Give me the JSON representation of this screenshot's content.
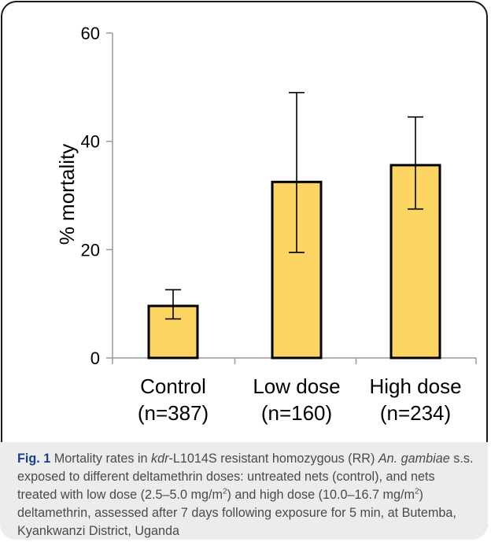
{
  "chart_data": {
    "type": "bar",
    "categories": [
      "Control",
      "Low dose",
      "High dose"
    ],
    "category_counts": [
      "(n=387)",
      "(n=160)",
      "(n=234)"
    ],
    "values": [
      9.6,
      32.5,
      35.6
    ],
    "error_low": [
      7.2,
      19.5,
      27.5
    ],
    "error_high": [
      12.6,
      49.0,
      44.5
    ],
    "ylabel": "% mortality",
    "ylim": [
      0,
      60
    ],
    "yticks": [
      0,
      20,
      40,
      60
    ],
    "bar_color": "#fcd562",
    "grid": false
  },
  "caption": {
    "lead": "Fig. 1",
    "p1": " Mortality rates in ",
    "kdr": "kdr",
    "p2": "-L1014S resistant homozygous (RR) ",
    "an": "An.",
    "gambiae": "gambiae",
    "p3": " s.s. exposed to different deltamethrin doses: untreated nets (control), and nets treated with low dose (2.5–5.0 mg/m",
    "sup1": "2",
    "p4": ") and high dose (10.0–16.7 mg/m",
    "sup2": "2",
    "p5": ") deltamethrin, assessed after 7 days following exposure for 5 min, at Butemba, Kyankwanzi District, Uganda"
  }
}
